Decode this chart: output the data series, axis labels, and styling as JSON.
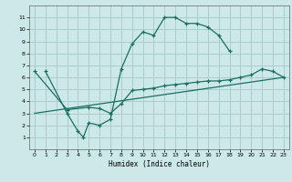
{
  "title": "",
  "xlabel": "Humidex (Indice chaleur)",
  "background_color": "#cce8e8",
  "grid_color": "#aacccc",
  "line_color": "#1a6e60",
  "xlim": [
    -0.5,
    23.5
  ],
  "ylim": [
    0,
    12
  ],
  "xticks": [
    0,
    1,
    2,
    3,
    4,
    5,
    6,
    7,
    8,
    9,
    10,
    11,
    12,
    13,
    14,
    15,
    16,
    17,
    18,
    19,
    20,
    21,
    22,
    23
  ],
  "yticks": [
    1,
    2,
    3,
    4,
    5,
    6,
    7,
    8,
    9,
    10,
    11
  ],
  "line1_x": [
    1,
    3,
    4,
    4.5,
    5,
    6,
    7,
    8,
    9,
    10,
    11,
    12,
    13,
    14,
    15,
    16,
    17,
    18
  ],
  "line1_y": [
    6.5,
    3.0,
    1.5,
    1.0,
    2.2,
    2.0,
    2.5,
    6.7,
    8.8,
    9.8,
    9.5,
    11.0,
    11.0,
    10.5,
    10.5,
    10.2,
    9.5,
    8.2
  ],
  "line2_x": [
    0,
    3,
    5,
    6,
    7,
    8,
    9,
    10,
    11,
    12,
    13,
    14,
    15,
    16,
    17,
    18,
    19,
    20,
    21,
    22,
    23
  ],
  "line2_y": [
    6.5,
    3.3,
    3.5,
    3.4,
    3.0,
    3.8,
    4.9,
    5.0,
    5.1,
    5.3,
    5.4,
    5.5,
    5.6,
    5.7,
    5.7,
    5.8,
    6.0,
    6.2,
    6.7,
    6.5,
    6.0
  ],
  "line3_x": [
    0,
    23
  ],
  "line3_y": [
    3.0,
    6.0
  ]
}
